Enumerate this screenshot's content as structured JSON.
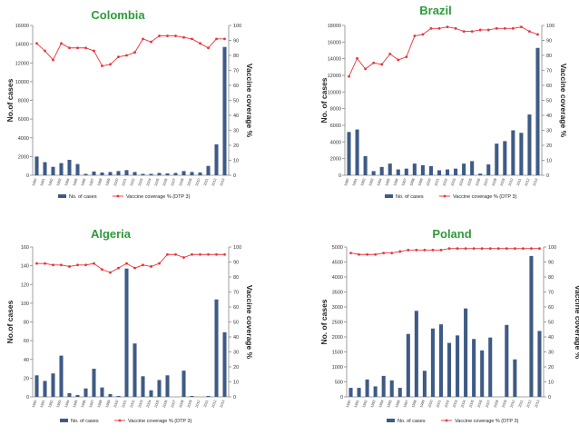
{
  "colors": {
    "bar": "#3e5b85",
    "line": "#e8333a",
    "title": "#2e9b3a",
    "axis": "#888888"
  },
  "legend": {
    "cases_label": "No. of cases",
    "coverage_label": "Vaccine coverage % (DTP 3)",
    "coverage_label_short": "Vaccine coverage %"
  },
  "years": [
    "1990",
    "1991",
    "1992",
    "1993",
    "1994",
    "1995",
    "1996",
    "1997",
    "1998",
    "1999",
    "2000",
    "2001",
    "2002",
    "2003",
    "2004",
    "2005",
    "2006",
    "2007",
    "2008",
    "2009",
    "2010",
    "2011",
    "2012",
    "2013"
  ],
  "chart_data": [
    {
      "type": "bar+line",
      "title": "Colombia",
      "ylabel": "No.of cases",
      "y2label": "Vaccine coverage %",
      "ylim": [
        0,
        16000
      ],
      "yticks": [
        0,
        2000,
        4000,
        6000,
        8000,
        10000,
        12000,
        14000,
        16000
      ],
      "y2lim": [
        0,
        100
      ],
      "y2ticks": [
        0,
        10,
        20,
        30,
        40,
        50,
        60,
        70,
        80,
        90,
        100
      ],
      "series": [
        {
          "name": "No. of cases",
          "kind": "bar",
          "values": [
            2000,
            1400,
            900,
            1300,
            1650,
            1200,
            150,
            400,
            300,
            350,
            450,
            550,
            350,
            150,
            150,
            250,
            200,
            250,
            450,
            350,
            300,
            1000,
            3300,
            13700
          ]
        },
        {
          "name": "Vaccine coverage % (DTP 3)",
          "kind": "line",
          "values": [
            88,
            83,
            77,
            88,
            85,
            85,
            85,
            83,
            73,
            74,
            79,
            80,
            82,
            91,
            89,
            93,
            93,
            93,
            92,
            91,
            88,
            85,
            91,
            91
          ]
        }
      ],
      "legend_position": "bottom"
    },
    {
      "type": "bar+line",
      "title": "Brazil",
      "ylabel": "No. of cases",
      "y2label": "Vaccine coverage %",
      "ylim": [
        0,
        18000
      ],
      "yticks": [
        0,
        2000,
        4000,
        6000,
        8000,
        10000,
        12000,
        14000,
        16000,
        18000
      ],
      "y2lim": [
        0,
        100
      ],
      "y2ticks": [
        0,
        10,
        20,
        30,
        40,
        50,
        60,
        70,
        80,
        90,
        100
      ],
      "series": [
        {
          "name": "No. of cases",
          "kind": "bar",
          "values": [
            5200,
            5500,
            2300,
            500,
            1000,
            1400,
            700,
            800,
            1400,
            1200,
            1100,
            600,
            700,
            800,
            1400,
            1700,
            200,
            1300,
            3800,
            4100,
            5400,
            5100,
            7300,
            15300
          ]
        },
        {
          "name": "Vaccine coverage % (DTP 3)",
          "kind": "line",
          "values": [
            66,
            78,
            71,
            75,
            74,
            81,
            77,
            79,
            93,
            94,
            98,
            98,
            99,
            98,
            96,
            96,
            97,
            97,
            98,
            98,
            98,
            99,
            96,
            94
          ]
        }
      ],
      "legend_position": "bottom"
    },
    {
      "type": "bar+line",
      "title": "Algeria",
      "ylabel": "No.of cases",
      "y2label": "Vaccine coverage %",
      "ylim": [
        0,
        160
      ],
      "yticks": [
        0,
        20,
        40,
        60,
        80,
        100,
        120,
        140,
        160
      ],
      "y2lim": [
        0,
        100
      ],
      "y2ticks": [
        0,
        10,
        20,
        30,
        40,
        50,
        60,
        70,
        80,
        90,
        100
      ],
      "series": [
        {
          "name": "No. of cases",
          "kind": "bar",
          "values": [
            23,
            17,
            25,
            44,
            4,
            2,
            9,
            30,
            10,
            3,
            1,
            137,
            57,
            22,
            7,
            18,
            23,
            0,
            28,
            1,
            0,
            1,
            104,
            69
          ]
        },
        {
          "name": "Vaccine coverage % (DTP 3)",
          "kind": "line",
          "values": [
            89,
            89,
            88,
            88,
            87,
            88,
            88,
            89,
            85,
            83,
            86,
            89,
            86,
            88,
            87,
            89,
            95,
            95,
            93,
            95,
            95,
            95,
            95,
            95
          ]
        }
      ],
      "legend_position": "bottom"
    },
    {
      "type": "bar+line",
      "title": "Poland",
      "ylabel": "No. of cases",
      "y2label": "Vaccine coverage %",
      "ylim": [
        0,
        5000
      ],
      "yticks": [
        0,
        500,
        1000,
        1500,
        2000,
        2500,
        3000,
        3500,
        4000,
        4500,
        5000
      ],
      "y2lim": [
        0,
        100
      ],
      "y2ticks": [
        0,
        10,
        20,
        30,
        40,
        50,
        60,
        70,
        80,
        90,
        100
      ],
      "series": [
        {
          "name": "No. of cases",
          "kind": "bar",
          "values": [
            300,
            300,
            580,
            350,
            700,
            550,
            300,
            2100,
            2870,
            870,
            2280,
            2420,
            1800,
            2050,
            2950,
            1930,
            1550,
            1980,
            0,
            2400,
            1250,
            0,
            4700,
            2200
          ]
        },
        {
          "name": "Vaccine coverage % (DTP 3)",
          "kind": "line",
          "values": [
            96,
            95,
            95,
            95,
            96,
            96,
            97,
            98,
            98,
            98,
            98,
            98,
            99,
            99,
            99,
            99,
            99,
            99,
            99,
            99,
            99,
            99,
            99,
            99
          ]
        }
      ],
      "legend_position": "bottom"
    }
  ]
}
